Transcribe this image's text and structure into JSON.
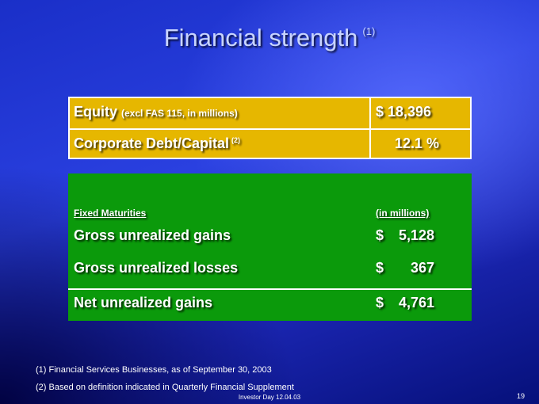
{
  "header": {
    "title": "Financial strength",
    "note": "(1)"
  },
  "summary": {
    "rows": [
      {
        "label": "Equity",
        "note": "(excl FAS 115, in millions)",
        "value": "$ 18,396"
      },
      {
        "label": "Corporate Debt/Capital",
        "note": "(2)",
        "value": "12.1 %"
      }
    ]
  },
  "maturities": {
    "header": {
      "label": "Fixed Maturities",
      "unit": "(in millions)"
    },
    "rows": [
      {
        "label": "Gross unrealized gains",
        "currency": "$",
        "amount": "5,128"
      },
      {
        "label": "Gross unrealized losses",
        "currency": "$",
        "amount": "367"
      }
    ],
    "total": {
      "label": "Net unrealized gains",
      "currency": "$",
      "amount": "4,761"
    }
  },
  "footnotes": [
    "(1) Financial Services Businesses, as of September 30, 2003",
    "(2) Based on definition indicated in Quarterly Financial Supplement"
  ],
  "footer": {
    "text": "Investor Day 12.04.03",
    "page": "19"
  }
}
